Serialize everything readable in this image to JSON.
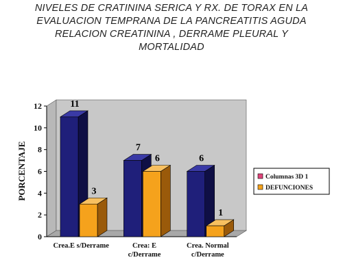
{
  "title_lines": [
    "NIVELES DE CRATININA SERICA Y RX. DE TORAX EN LA",
    "EVALUACION TEMPRANA DE LA PANCREATITIS AGUDA",
    "RELACION CREATININA , DERRAME PLEURAL Y",
    "MORTALIDAD"
  ],
  "colors": {
    "series1_front": "#1f1f7a",
    "series1_top": "#3a3aa6",
    "series1_side": "#0f0f45",
    "series2_front": "#f5a21c",
    "series2_top": "#f8c060",
    "series2_side": "#9a5a0a",
    "wall": "#c8c8c8"
  },
  "chart_data": {
    "type": "bar",
    "title": "NIVELES DE CRATININA SERICA Y RX. DE TORAX EN LA EVALUACION TEMPRANA DE LA PANCREATITIS AGUDA RELACION CREATININA , DERRAME PLEURAL Y MORTALIDAD",
    "xlabel": "",
    "ylabel": "PORCENTAJE",
    "ylim": [
      0,
      12
    ],
    "yticks": [
      0,
      2,
      4,
      6,
      8,
      10,
      12
    ],
    "grid": false,
    "legend_position": "right",
    "categories": [
      [
        "Crea.E s/Derrame"
      ],
      [
        "Crea: E",
        "c/Derrame"
      ],
      [
        "Crea. Normal",
        "c/Derrame"
      ]
    ],
    "series": [
      {
        "name": "Columnas 3D 1",
        "values": [
          11,
          7,
          6
        ]
      },
      {
        "name": "DEFUNCIONES",
        "values": [
          3,
          6,
          1
        ]
      }
    ]
  }
}
